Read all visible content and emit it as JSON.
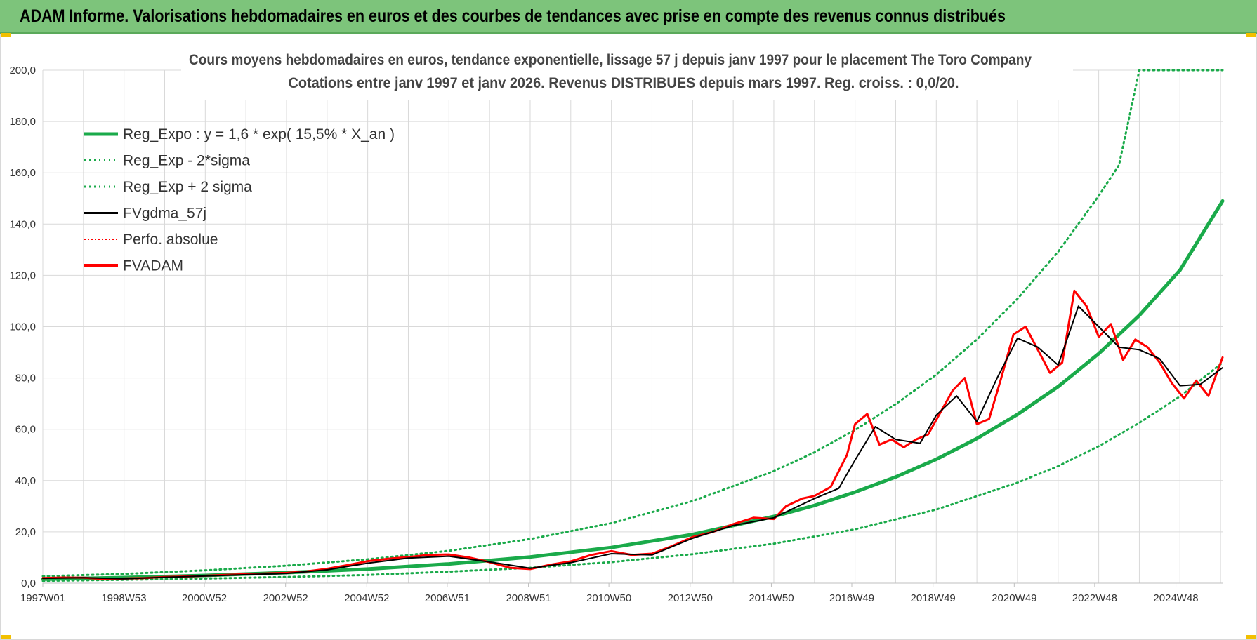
{
  "header": {
    "title": "ADAM Informe. Valorisations hebdomadaires en euros et des courbes de tendances avec prise en compte des revenus connus distribués"
  },
  "colors": {
    "banner": "#7dc47b",
    "trend": "#1aaa4a",
    "price": "#ff0000",
    "smooth": "#000000",
    "grid": "#d9d9d9"
  },
  "chart_data": {
    "type": "line",
    "title": "Cours moyens hebdomadaires en euros, tendance exponentielle, lissage 57 j depuis janv 1997  pour le placement The Toro Company",
    "subtitle": "Cotations entre janv 1997 et janv 2026. Revenus DISTRIBUES depuis mars 1997.  Reg. croiss. : 0,0/20.",
    "xlabel": "",
    "ylabel": "",
    "ylim": [
      0,
      200
    ],
    "xlim": [
      1997.0,
      2026.05
    ],
    "y_ticks": [
      "0,0",
      "20,0",
      "40,0",
      "60,0",
      "80,0",
      "100,0",
      "120,0",
      "140,0",
      "160,0",
      "180,0",
      "200,0"
    ],
    "x_tick_labels": [
      "1997W01",
      "1998W53",
      "2000W52",
      "2002W52",
      "2004W52",
      "2006W51",
      "2008W51",
      "2010W50",
      "2012W50",
      "2014W50",
      "2016W49",
      "2018W49",
      "2020W49",
      "2022W48",
      "2024W48"
    ],
    "grid": true,
    "legend_position": "top-left",
    "legend": [
      {
        "name": "Reg_Expo : y = 1,6 * exp( 15,5% *  X_an )",
        "color": "#1aaa4a",
        "style": "solid-thick"
      },
      {
        "name": "Reg_Exp - 2*sigma",
        "color": "#1aaa4a",
        "style": "dotted"
      },
      {
        "name": "Reg_Exp + 2 sigma",
        "color": "#1aaa4a",
        "style": "dotted"
      },
      {
        "name": "FVgdma_57j",
        "color": "#000000",
        "style": "solid"
      },
      {
        "name": "Perfo. absolue",
        "color": "#ff0000",
        "style": "dotted"
      },
      {
        "name": "FVADAM",
        "color": "#ff0000",
        "style": "solid-thick"
      }
    ],
    "series": [
      {
        "name": "Reg_Expo : y = 1,6 * exp( 15,5% *  X_an )",
        "x": [
          1997.0,
          1999.0,
          2001.0,
          2003.0,
          2005.0,
          2007.0,
          2009.0,
          2011.0,
          2013.0,
          2015.0,
          2016.0,
          2017.0,
          2018.0,
          2019.0,
          2020.0,
          2021.0,
          2022.0,
          2023.0,
          2024.0,
          2025.0,
          2026.05
        ],
        "y": [
          1.6,
          2.2,
          3.0,
          4.1,
          5.5,
          7.5,
          10.2,
          13.9,
          19.0,
          26.0,
          30.3,
          35.5,
          41.4,
          48.3,
          56.4,
          65.8,
          76.6,
          89.5,
          104.4,
          122.0,
          149.0
        ]
      },
      {
        "name": "Reg_Exp - 2*sigma",
        "x": [
          1997.0,
          1999.0,
          2001.0,
          2003.0,
          2005.0,
          2007.0,
          2009.0,
          2011.0,
          2013.0,
          2015.0,
          2017.0,
          2019.0,
          2021.0,
          2022.0,
          2023.0,
          2024.0,
          2025.0,
          2026.05
        ],
        "y": [
          0.9,
          1.3,
          1.8,
          2.4,
          3.2,
          4.5,
          6.0,
          8.2,
          11.3,
          15.4,
          21.0,
          28.7,
          39.2,
          45.6,
          53.4,
          62.5,
          72.8,
          86.0
        ]
      },
      {
        "name": "Reg_Exp + 2 sigma",
        "x": [
          1997.0,
          1999.0,
          2001.0,
          2003.0,
          2005.0,
          2007.0,
          2009.0,
          2011.0,
          2013.0,
          2015.0,
          2016.0,
          2017.0,
          2018.0,
          2019.0,
          2020.0,
          2021.0,
          2022.0,
          2023.0,
          2023.5,
          2024.0,
          2025.0,
          2026.05
        ],
        "y": [
          2.7,
          3.6,
          5.0,
          6.8,
          9.3,
          12.6,
          17.2,
          23.4,
          32.0,
          43.7,
          51.0,
          59.7,
          69.8,
          81.3,
          95.0,
          110.9,
          129.2,
          151.0,
          163.0,
          200.0,
          200.0,
          200.0
        ]
      },
      {
        "name": "FVgdma_57j",
        "x": [
          1997.0,
          1998.0,
          1999.0,
          2000.0,
          2001.0,
          2002.0,
          2003.0,
          2004.0,
          2005.0,
          2006.0,
          2007.0,
          2008.0,
          2009.0,
          2010.0,
          2011.0,
          2012.0,
          2013.0,
          2014.0,
          2015.0,
          2016.0,
          2016.6,
          2017.0,
          2017.5,
          2018.0,
          2018.6,
          2019.0,
          2019.5,
          2020.0,
          2020.5,
          2021.0,
          2021.5,
          2022.0,
          2022.5,
          2023.0,
          2023.5,
          2024.0,
          2024.5,
          2025.0,
          2025.5,
          2026.05
        ],
        "y": [
          1.9,
          2.1,
          1.7,
          2.3,
          2.8,
          3.3,
          3.8,
          5.2,
          7.8,
          9.8,
          10.5,
          8.3,
          5.8,
          8.0,
          11.5,
          11.0,
          17.5,
          22.5,
          25.5,
          33.0,
          37.0,
          48.0,
          61.0,
          56.0,
          54.5,
          65.5,
          73.0,
          63.0,
          80.0,
          95.5,
          92.0,
          85.0,
          108.0,
          100.0,
          92.0,
          91.0,
          87.5,
          77.0,
          77.5,
          84.0
        ]
      },
      {
        "name": "FVADAM",
        "x": [
          1997.0,
          1997.5,
          1998.0,
          1998.6,
          1999.0,
          1999.5,
          2000.0,
          2000.5,
          2001.0,
          2001.5,
          2002.0,
          2002.5,
          2003.0,
          2003.5,
          2004.0,
          2004.5,
          2005.0,
          2005.5,
          2006.0,
          2006.5,
          2007.0,
          2007.5,
          2008.0,
          2008.5,
          2009.0,
          2009.5,
          2010.0,
          2010.5,
          2011.0,
          2011.5,
          2012.0,
          2012.5,
          2013.0,
          2013.5,
          2014.0,
          2014.5,
          2015.0,
          2015.3,
          2015.7,
          2016.0,
          2016.4,
          2016.8,
          2017.0,
          2017.3,
          2017.6,
          2017.9,
          2018.2,
          2018.5,
          2018.8,
          2019.1,
          2019.4,
          2019.7,
          2020.0,
          2020.3,
          2020.6,
          2020.9,
          2021.2,
          2021.5,
          2021.8,
          2022.1,
          2022.4,
          2022.7,
          2023.0,
          2023.3,
          2023.6,
          2023.9,
          2024.2,
          2024.5,
          2024.8,
          2025.1,
          2025.4,
          2025.7,
          2026.05
        ],
        "y": [
          2.0,
          2.2,
          2.1,
          1.6,
          1.8,
          2.0,
          2.4,
          2.6,
          2.9,
          3.2,
          3.5,
          3.8,
          4.0,
          4.6,
          5.6,
          7.0,
          8.6,
          9.5,
          10.2,
          11.0,
          11.2,
          10.0,
          8.2,
          6.0,
          5.5,
          7.2,
          8.5,
          11.0,
          12.5,
          11.0,
          11.5,
          14.5,
          18.0,
          20.0,
          23.0,
          25.5,
          25.0,
          30.0,
          33.0,
          34.0,
          37.5,
          50.0,
          62.0,
          66.0,
          54.0,
          56.0,
          53.0,
          56.0,
          58.0,
          66.5,
          75.0,
          80.0,
          62.0,
          64.0,
          80.0,
          97.0,
          100.0,
          91.0,
          82.0,
          86.0,
          114.0,
          108.0,
          96.0,
          101.0,
          87.0,
          95.0,
          92.0,
          86.0,
          78.0,
          72.0,
          79.0,
          73.0,
          88.0
        ]
      }
    ]
  }
}
